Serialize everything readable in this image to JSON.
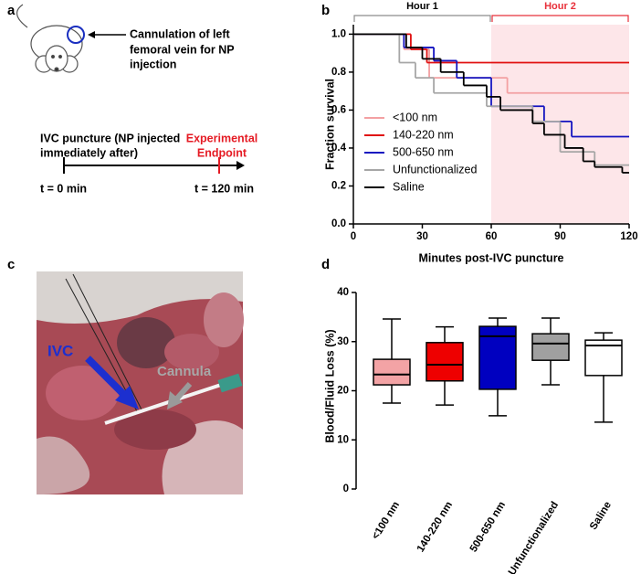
{
  "panel_labels": [
    "a",
    "b",
    "c",
    "d"
  ],
  "schematic": {
    "cannulation": [
      "Cannulation of left",
      "femoral vein for NP",
      "injection"
    ],
    "puncture": [
      "IVC puncture (NP injected",
      "immediately after)"
    ],
    "endpoint": [
      "Experimental",
      "Endpoint"
    ],
    "start": "t = 0 min",
    "end": "t = 120 min"
  },
  "photo": {
    "vessel_label": "IVC",
    "cannula_label": "Cannula"
  },
  "chart_data": [
    {
      "type": "survival",
      "xlabel": "Minutes post-IVC puncture",
      "ylabel": "Fraction survival",
      "xlim": [
        0,
        120
      ],
      "ylim": [
        0,
        1.05
      ],
      "xticks": [
        0,
        30,
        60,
        90,
        120
      ],
      "yticks": [
        {
          "value": 0,
          "label": "0.0"
        },
        {
          "value": 0.2,
          "label": "0.2"
        },
        {
          "value": 0.4,
          "label": "0.4"
        },
        {
          "value": 0.6,
          "label": "0.6"
        },
        {
          "value": 0.8,
          "label": "0.8"
        },
        {
          "value": 1,
          "label": "1.0"
        }
      ],
      "step": "post",
      "periods": [
        {
          "label": "Hour 1",
          "span": [
            0,
            60
          ],
          "color": "#8c8c8c"
        },
        {
          "label": "Hour 2",
          "span": [
            60,
            120
          ],
          "color": "#e8303a"
        }
      ],
      "shade": {
        "span": [
          60,
          120
        ],
        "color": "#fde6e9"
      },
      "series": [
        {
          "name": "<100 nm",
          "color": "#f3a0a2",
          "x": [
            0,
            22,
            33,
            67
          ],
          "values": [
            1,
            0.92,
            0.77,
            0.69
          ]
        },
        {
          "name": "140-220 nm",
          "color": "#e01010",
          "x": [
            0,
            25,
            32
          ],
          "values": [
            1,
            0.92,
            0.85
          ]
        },
        {
          "name": "500-650 nm",
          "color": "#1414c0",
          "x": [
            0,
            22,
            35,
            45,
            60,
            83,
            95
          ],
          "values": [
            1,
            0.93,
            0.86,
            0.77,
            0.62,
            0.54,
            0.46
          ]
        },
        {
          "name": "Unfunctionalized",
          "color": "#a6a6a6",
          "x": [
            0,
            20,
            27,
            35,
            58,
            78,
            90,
            105
          ],
          "values": [
            1,
            0.85,
            0.77,
            0.69,
            0.62,
            0.54,
            0.38,
            0.31
          ]
        },
        {
          "name": "Saline",
          "color": "#000000",
          "x": [
            0,
            23,
            30,
            38,
            48,
            58,
            64,
            78,
            83,
            92,
            100,
            105,
            117
          ],
          "values": [
            1,
            0.93,
            0.87,
            0.8,
            0.73,
            0.67,
            0.6,
            0.53,
            0.47,
            0.4,
            0.33,
            0.3,
            0.27
          ]
        }
      ]
    },
    {
      "type": "box",
      "ylabel": "Blood/Fluid Loss (%)",
      "ylim": [
        0,
        40
      ],
      "yticks": [
        0,
        10,
        20,
        30,
        40
      ],
      "categories": [
        "<100 nm",
        "140-220 nm",
        "500-650 nm",
        "Unfunctionalized",
        "Saline"
      ],
      "colors": [
        "#f3a3a5",
        "#ee0000",
        "#0000c0",
        "#a0a0a0",
        "#ffffff"
      ],
      "min": [
        17.5,
        17.1,
        14.9,
        21.2,
        13.6
      ],
      "q1": [
        21.2,
        22,
        20.3,
        26.2,
        23.1
      ],
      "median": [
        23.3,
        25.3,
        31.1,
        29.6,
        29.2
      ],
      "q3": [
        26.4,
        29.8,
        33.1,
        31.6,
        30.3
      ],
      "max": [
        34.6,
        33,
        34.8,
        34.8,
        31.8
      ]
    }
  ]
}
